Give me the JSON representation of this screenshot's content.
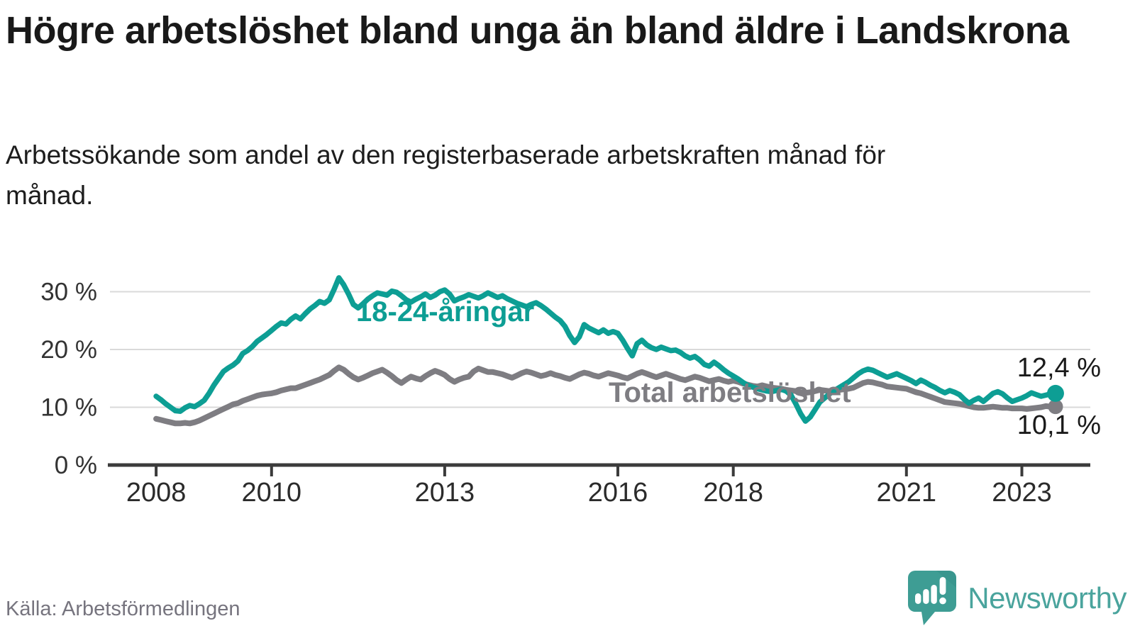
{
  "header": {
    "title": "Högre arbetslöshet bland unga än bland äldre i Landskrona",
    "subtitle": "Arbetssökande som andel av den registerbaserade arbetskraften månad för månad."
  },
  "source": {
    "label": "Källa: Arbetsförmedlingen"
  },
  "branding": {
    "logo_text": "Newsworthy",
    "logo_icon": "newsworthy-speech-bubble-bar-chart-icon"
  },
  "colors": {
    "youth_line": "#0D9E94",
    "total_line": "#7E7D82",
    "axis": "#3b3b3b",
    "grid": "#dadada",
    "text": "#191919",
    "muted_text": "#76747E",
    "logo": "#4AA49D"
  },
  "chart_data": {
    "type": "line",
    "title": "Högre arbetslöshet bland unga än bland äldre i Landskrona",
    "xlabel": "",
    "ylabel": "",
    "grid": "horizontal",
    "x_range": [
      2007.2,
      2024.1
    ],
    "ylim": [
      0,
      38.77
    ],
    "x_ticks": [
      2008,
      2010,
      2013,
      2016,
      2018,
      2021,
      2023
    ],
    "x_tick_labels": [
      "2008",
      "2010",
      "2013",
      "2016",
      "2018",
      "2021",
      "2023"
    ],
    "y_ticks": [
      0,
      10,
      20,
      30
    ],
    "y_tick_labels": [
      "0 %",
      "10 %",
      "20 %",
      "30 %"
    ],
    "series_start": "2008-01",
    "series_end": "2023-08",
    "step_months": 1,
    "series": [
      {
        "id": "youth",
        "name": "18-24-åringar",
        "color": "#0D9E94",
        "start_year": 2008,
        "end_label": "12,4 %",
        "last_value": 12.4,
        "values": [
          11.9,
          11.3,
          10.6,
          10.0,
          9.4,
          9.3,
          9.9,
          10.3,
          10.1,
          10.6,
          11.2,
          12.4,
          13.8,
          15.0,
          16.2,
          16.8,
          17.3,
          18.0,
          19.3,
          19.8,
          20.5,
          21.4,
          22.0,
          22.6,
          23.3,
          24.0,
          24.6,
          24.4,
          25.2,
          25.8,
          25.3,
          26.2,
          27.0,
          27.6,
          28.3,
          28.0,
          28.6,
          30.4,
          32.4,
          31.2,
          29.6,
          27.8,
          27.2,
          27.9,
          28.7,
          29.3,
          29.8,
          29.6,
          29.4,
          30.1,
          29.9,
          29.3,
          28.6,
          28.2,
          28.7,
          29.1,
          29.6,
          29.0,
          29.4,
          30.0,
          30.3,
          29.6,
          28.4,
          28.8,
          29.1,
          29.5,
          29.2,
          28.9,
          29.3,
          29.8,
          29.4,
          29.0,
          29.3,
          28.8,
          28.4,
          28.0,
          27.7,
          27.4,
          27.8,
          28.1,
          27.6,
          27.0,
          26.3,
          25.6,
          25.0,
          24.0,
          22.4,
          21.2,
          22.2,
          24.3,
          23.7,
          23.3,
          22.9,
          23.4,
          22.8,
          23.1,
          22.8,
          21.6,
          20.2,
          18.9,
          21.0,
          21.6,
          20.8,
          20.3,
          20.0,
          20.4,
          20.1,
          19.8,
          19.9,
          19.5,
          18.9,
          18.5,
          18.8,
          18.2,
          17.4,
          17.1,
          17.8,
          17.2,
          16.5,
          15.9,
          15.4,
          14.9,
          14.3,
          13.8,
          13.5,
          13.2,
          13.0,
          12.8,
          12.7,
          12.9,
          13.1,
          12.8,
          12.1,
          10.6,
          8.9,
          7.6,
          8.3,
          9.6,
          10.9,
          11.6,
          12.3,
          12.9,
          13.4,
          13.9,
          14.4,
          15.1,
          15.8,
          16.3,
          16.6,
          16.4,
          16.0,
          15.6,
          15.2,
          15.5,
          15.8,
          15.4,
          15.0,
          14.6,
          14.1,
          14.7,
          14.3,
          13.8,
          13.4,
          12.9,
          12.5,
          12.9,
          12.6,
          12.2,
          11.4,
          10.7,
          11.2,
          11.6,
          11.0,
          11.7,
          12.4,
          12.7,
          12.3,
          11.6,
          11.0,
          11.3,
          11.6,
          12.0,
          12.5,
          12.2,
          11.9,
          12.1,
          12.3,
          12.4
        ]
      },
      {
        "id": "total",
        "name": "Total arbetslöshet",
        "color": "#7E7D82",
        "start_year": 2008,
        "end_label": "10,1 %",
        "last_value": 10.1,
        "values": [
          8.0,
          7.8,
          7.6,
          7.4,
          7.2,
          7.2,
          7.3,
          7.2,
          7.4,
          7.7,
          8.1,
          8.5,
          8.9,
          9.3,
          9.7,
          10.1,
          10.5,
          10.7,
          11.1,
          11.4,
          11.7,
          12.0,
          12.2,
          12.3,
          12.4,
          12.6,
          12.9,
          13.1,
          13.3,
          13.3,
          13.6,
          13.9,
          14.2,
          14.5,
          14.8,
          15.2,
          15.6,
          16.3,
          16.9,
          16.5,
          15.8,
          15.2,
          14.8,
          15.1,
          15.5,
          15.9,
          16.2,
          16.5,
          16.0,
          15.4,
          14.7,
          14.2,
          14.8,
          15.3,
          15.0,
          14.8,
          15.4,
          15.9,
          16.3,
          16.0,
          15.6,
          14.9,
          14.4,
          14.8,
          15.1,
          15.3,
          16.2,
          16.7,
          16.4,
          16.1,
          16.1,
          15.9,
          15.7,
          15.4,
          15.1,
          15.5,
          15.9,
          16.2,
          16.0,
          15.7,
          15.4,
          15.6,
          15.9,
          15.6,
          15.4,
          15.1,
          14.9,
          15.3,
          15.7,
          16.0,
          15.8,
          15.5,
          15.3,
          15.6,
          15.9,
          15.7,
          15.5,
          15.2,
          15.0,
          15.4,
          15.8,
          16.1,
          15.8,
          15.5,
          15.2,
          15.5,
          15.8,
          15.5,
          15.2,
          14.9,
          14.7,
          15.0,
          15.3,
          15.1,
          14.8,
          14.5,
          14.7,
          14.9,
          14.6,
          14.4,
          14.6,
          14.4,
          14.1,
          13.9,
          13.7,
          13.6,
          13.8,
          13.6,
          13.4,
          13.3,
          13.2,
          13.0,
          12.9,
          12.8,
          12.6,
          12.5,
          12.6,
          12.8,
          13.0,
          12.9,
          12.8,
          12.9,
          13.0,
          13.1,
          13.2,
          13.4,
          13.8,
          14.2,
          14.4,
          14.3,
          14.1,
          13.9,
          13.6,
          13.5,
          13.4,
          13.3,
          13.2,
          12.9,
          12.6,
          12.4,
          12.1,
          11.8,
          11.5,
          11.2,
          10.9,
          10.8,
          10.7,
          10.6,
          10.4,
          10.2,
          10.0,
          9.9,
          9.9,
          10.0,
          10.1,
          10.0,
          9.9,
          9.9,
          9.8,
          9.8,
          9.8,
          9.7,
          9.8,
          9.9,
          10.0,
          10.2,
          10.1,
          10.1
        ]
      }
    ],
    "legend_position": "inline-labels"
  }
}
